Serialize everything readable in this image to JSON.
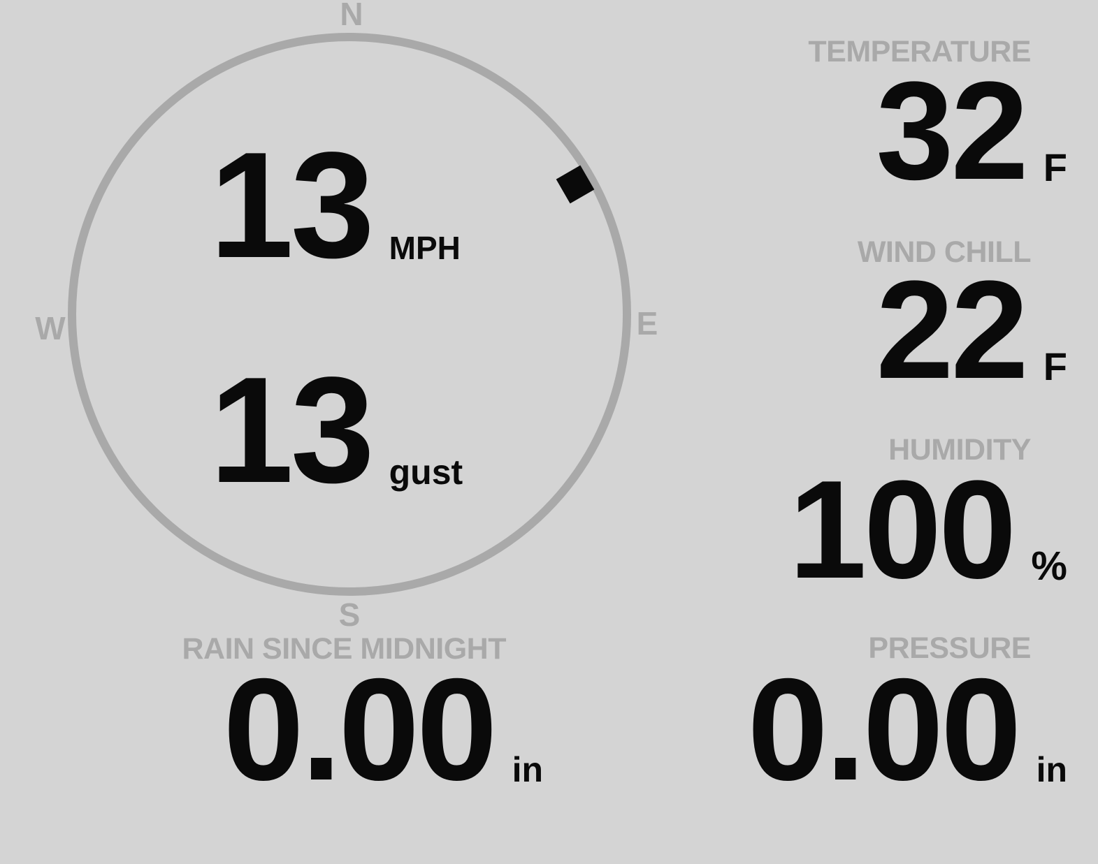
{
  "theme": {
    "background": "#d4d4d4",
    "muted": "#a9a9a9",
    "ink": "#0a0a0a"
  },
  "compass": {
    "cardinals": {
      "north": "N",
      "east": "E",
      "south": "S",
      "west": "W"
    },
    "wind_speed_value": "13",
    "wind_speed_unit": "MPH",
    "wind_gust_value": "13",
    "wind_gust_unit": "gust",
    "wind_direction_degrees": 60
  },
  "metrics": {
    "temperature": {
      "label": "TEMPERATURE",
      "value": "32",
      "unit": "F"
    },
    "wind_chill": {
      "label": "WIND CHILL",
      "value": "22",
      "unit": "F"
    },
    "humidity": {
      "label": "HUMIDITY",
      "value": "100",
      "unit": "%"
    },
    "rain_since_midnight": {
      "label": "RAIN SINCE MIDNIGHT",
      "value": "0.00",
      "unit": "in"
    },
    "pressure": {
      "label": "PRESSURE",
      "value": "0.00",
      "unit": "in"
    }
  }
}
